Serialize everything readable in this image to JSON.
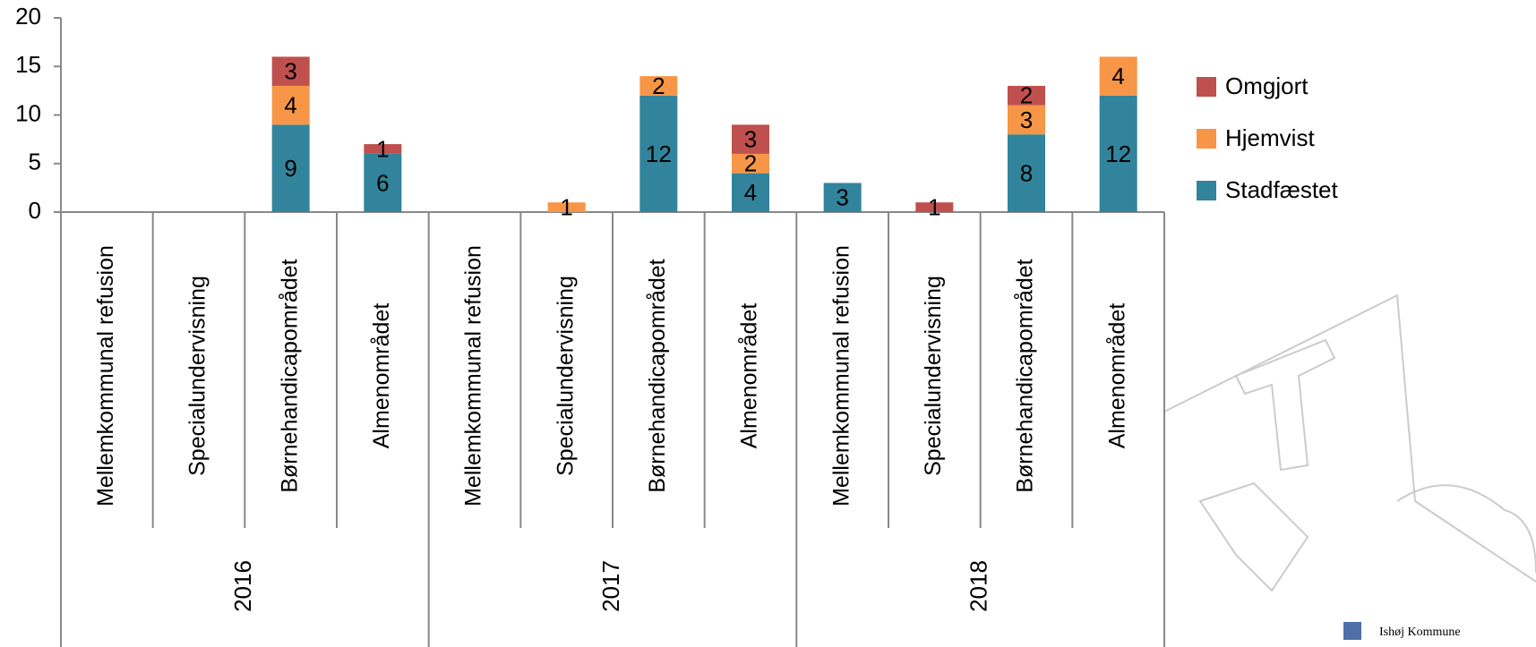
{
  "chart_data": {
    "type": "bar",
    "stacked": true,
    "categories": [
      "Mellemkommunal refusion",
      "Specialundervisning",
      "Børnehandicapområdet",
      "Almenområdet",
      "Mellemkommunal refusion",
      "Specialundervisning",
      "Børnehandicapområdet",
      "Almenområdet",
      "Mellemkommunal refusion",
      "Specialundervisning",
      "Børnehandicapområdet",
      "Almenområdet"
    ],
    "groups": [
      {
        "label": "2016",
        "size": 4
      },
      {
        "label": "2017",
        "size": 4
      },
      {
        "label": "2018",
        "size": 4
      }
    ],
    "series": [
      {
        "name": "Stadfæstet",
        "color": "#31849b",
        "values": [
          null,
          null,
          9,
          6,
          null,
          null,
          12,
          4,
          3,
          null,
          8,
          12
        ]
      },
      {
        "name": "Hjemvist",
        "color": "#f79646",
        "values": [
          null,
          null,
          4,
          null,
          null,
          1,
          2,
          2,
          null,
          null,
          3,
          4
        ]
      },
      {
        "name": "Omgjort",
        "color": "#c0504d",
        "values": [
          null,
          null,
          3,
          1,
          null,
          null,
          null,
          3,
          null,
          1,
          2,
          null
        ]
      }
    ],
    "ylim": [
      0,
      20
    ],
    "yticks": [
      0,
      5,
      10,
      15,
      20
    ],
    "legend": "right"
  },
  "logo_text": "Ishøj Kommune"
}
